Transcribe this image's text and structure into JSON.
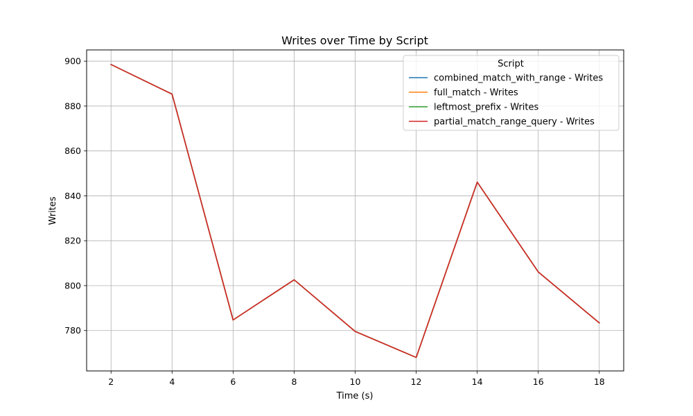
{
  "chart_data": {
    "type": "line",
    "title": "Writes over Time by Script",
    "xlabel": "Time (s)",
    "ylabel": "Writes",
    "xlim": [
      1.2,
      18.8
    ],
    "ylim": [
      762,
      905
    ],
    "x_ticks": [
      2,
      4,
      6,
      8,
      10,
      12,
      14,
      16,
      18
    ],
    "y_ticks": [
      780,
      800,
      820,
      840,
      860,
      880,
      900
    ],
    "grid": true,
    "legend": {
      "title": "Script",
      "placement": "top-right"
    },
    "x": [
      2,
      4,
      6,
      8,
      10,
      12,
      14,
      16,
      18
    ],
    "series": [
      {
        "name": "combined_match_with_range - Writes",
        "color": "#1f77b4",
        "values": [
          898.5,
          885.3,
          784.7,
          802.6,
          779.6,
          768.0,
          846.1,
          806.1,
          783.4
        ]
      },
      {
        "name": "full_match - Writes",
        "color": "#ff7f0e",
        "values": [
          898.5,
          885.3,
          784.7,
          802.6,
          779.6,
          768.0,
          846.1,
          806.1,
          783.4
        ]
      },
      {
        "name": "leftmost_prefix - Writes",
        "color": "#2ca02c",
        "values": [
          898.5,
          885.3,
          784.7,
          802.6,
          779.6,
          768.0,
          846.1,
          806.1,
          783.4
        ]
      },
      {
        "name": "partial_match_range_query - Writes",
        "color": "#d62728",
        "values": [
          898.5,
          885.3,
          784.7,
          802.6,
          779.6,
          768.0,
          846.1,
          806.1,
          783.4
        ]
      }
    ]
  }
}
